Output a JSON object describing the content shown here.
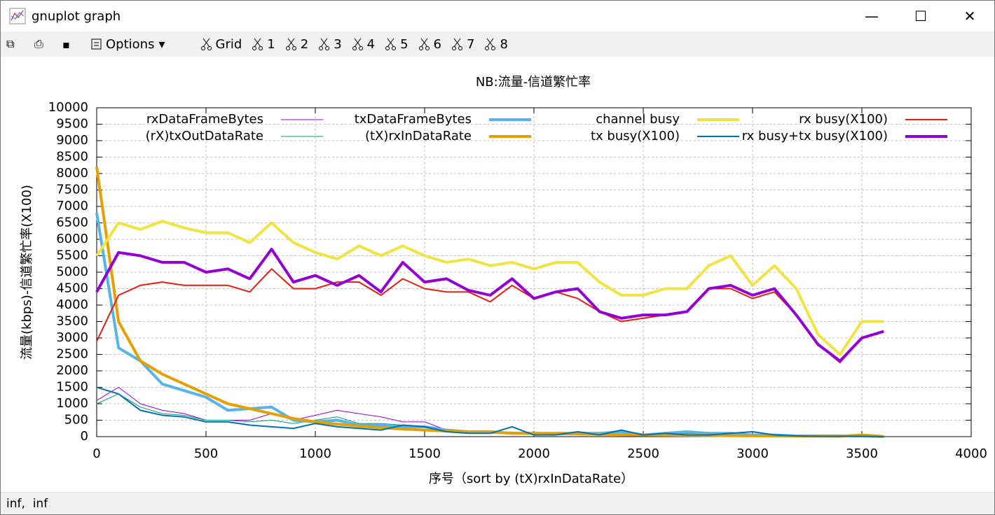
{
  "window": {
    "title": "gnuplot graph",
    "toolbar": [
      "Options",
      "Grid",
      "1",
      "2",
      "3",
      "4",
      "5",
      "6",
      "7",
      "8"
    ],
    "status": "inf,  inf"
  },
  "chart_data": {
    "type": "line",
    "title": "NB:流量-信道繁忙率",
    "x_label": "序号（sort by (tX)rxInDataRate）",
    "y_label": "流量(kbps)-信道繁忙率(X100)",
    "x": [
      0,
      100,
      200,
      300,
      400,
      500,
      600,
      700,
      800,
      900,
      1000,
      1100,
      1200,
      1300,
      1400,
      1500,
      1600,
      1700,
      1800,
      1900,
      2000,
      2100,
      2200,
      2300,
      2400,
      2500,
      2600,
      2700,
      2800,
      2900,
      3000,
      3100,
      3200,
      3300,
      3400,
      3500,
      3600
    ],
    "xlim": [
      0,
      4000
    ],
    "xticks": [
      0,
      500,
      1000,
      1500,
      2000,
      2500,
      3000,
      3500,
      4000
    ],
    "ylim": [
      0,
      10000
    ],
    "yticks": [
      0,
      500,
      1000,
      1500,
      2000,
      2500,
      3000,
      3500,
      4000,
      4500,
      5000,
      5500,
      6000,
      6500,
      7000,
      7500,
      8000,
      8500,
      9000,
      9500,
      10000
    ],
    "grid": true,
    "series": [
      {
        "name": "rxDataFrameBytes",
        "color": "#9400d3",
        "width": 1,
        "values": [
          1100,
          1500,
          1000,
          800,
          700,
          500,
          500,
          500,
          700,
          500,
          650,
          800,
          700,
          600,
          450,
          450,
          200,
          150,
          150,
          100,
          100,
          80,
          150,
          100,
          150,
          50,
          100,
          150,
          100,
          100,
          50,
          50,
          20,
          20,
          20,
          20,
          0
        ]
      },
      {
        "name": "(rX)txOutDataRate",
        "color": "#009e73",
        "width": 1,
        "values": [
          1000,
          1300,
          900,
          700,
          650,
          500,
          500,
          450,
          500,
          400,
          500,
          600,
          400,
          400,
          350,
          300,
          150,
          150,
          120,
          100,
          100,
          80,
          120,
          80,
          120,
          50,
          80,
          100,
          80,
          80,
          50,
          30,
          20,
          20,
          10,
          10,
          0
        ]
      },
      {
        "name": "txDataFrameBytes",
        "color": "#56b4e9",
        "width": 4,
        "values": [
          6800,
          2700,
          2300,
          1600,
          1400,
          1200,
          800,
          850,
          900,
          500,
          450,
          500,
          350,
          350,
          300,
          300,
          200,
          150,
          150,
          100,
          100,
          100,
          100,
          100,
          150,
          50,
          100,
          150,
          100,
          100,
          50,
          50,
          20,
          20,
          20,
          20,
          0
        ]
      },
      {
        "name": "(tX)rxInDataRate",
        "color": "#e69f00",
        "width": 4,
        "values": [
          8200,
          3500,
          2300,
          1900,
          1600,
          1300,
          1000,
          850,
          700,
          550,
          450,
          380,
          320,
          270,
          230,
          200,
          170,
          150,
          130,
          110,
          100,
          90,
          80,
          70,
          60,
          50,
          45,
          40,
          35,
          30,
          25,
          20,
          15,
          12,
          10,
          50,
          5
        ]
      },
      {
        "name": "channel busy",
        "color": "#f0e442",
        "width": 4,
        "values": [
          5500,
          6500,
          6300,
          6550,
          6350,
          6200,
          6200,
          5900,
          6500,
          5900,
          5600,
          5400,
          5800,
          5500,
          5800,
          5500,
          5300,
          5400,
          5200,
          5300,
          5100,
          5300,
          5300,
          4700,
          4300,
          4300,
          4500,
          4500,
          5200,
          5500,
          4600,
          5200,
          4500,
          3100,
          2500,
          3500,
          3500
        ]
      },
      {
        "name": "tx busy(X100)",
        "color": "#0072b2",
        "width": 2,
        "values": [
          1500,
          1300,
          800,
          650,
          600,
          450,
          450,
          350,
          300,
          250,
          400,
          300,
          250,
          200,
          350,
          300,
          150,
          100,
          100,
          300,
          50,
          50,
          150,
          50,
          200,
          50,
          100,
          50,
          50,
          100,
          150,
          50,
          20,
          10,
          10,
          10,
          0
        ]
      },
      {
        "name": "rx busy(X100)",
        "color": "#e51e10",
        "width": 2,
        "values": [
          2900,
          4300,
          4600,
          4700,
          4600,
          4600,
          4600,
          4400,
          5100,
          4500,
          4500,
          4700,
          4700,
          4300,
          4800,
          4500,
          4400,
          4400,
          4100,
          4600,
          4200,
          4400,
          4200,
          3800,
          3500,
          3600,
          3700,
          3800,
          4500,
          4500,
          4200,
          4400,
          3700,
          2800,
          2250,
          3000,
          3200
        ]
      },
      {
        "name": "rx busy+tx busy(X100)",
        "color": "#9400d3",
        "width": 4,
        "values": [
          4400,
          5600,
          5500,
          5300,
          5300,
          5000,
          5100,
          4800,
          5700,
          4700,
          4900,
          4600,
          4900,
          4400,
          5300,
          4700,
          4800,
          4450,
          4300,
          4800,
          4200,
          4400,
          4500,
          3800,
          3600,
          3700,
          3700,
          3800,
          4500,
          4600,
          4300,
          4500,
          3700,
          2800,
          2300,
          3000,
          3200
        ]
      }
    ]
  }
}
